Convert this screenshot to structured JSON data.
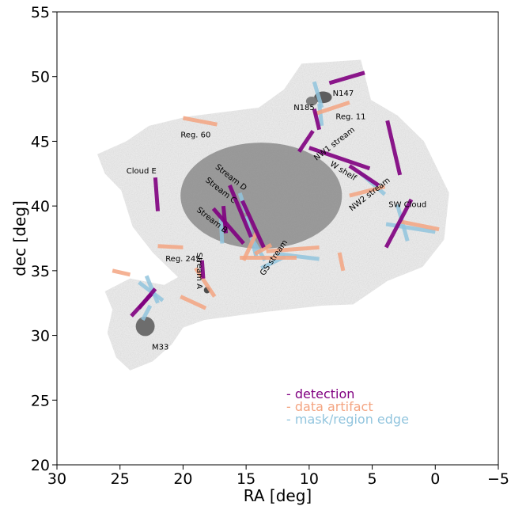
{
  "chart_data": {
    "type": "scatter",
    "xlabel": "RA [deg]",
    "ylabel": "dec [deg]",
    "xlim": [
      30,
      -5
    ],
    "ylim": [
      20,
      55
    ],
    "xticks": [
      "30",
      "25",
      "20",
      "15",
      "10",
      "5",
      "0",
      "−5"
    ],
    "yticks": [
      "20",
      "25",
      "30",
      "35",
      "40",
      "45",
      "50",
      "55"
    ],
    "xtick_values": [
      30,
      25,
      20,
      15,
      10,
      5,
      0,
      -5
    ],
    "ytick_values": [
      20,
      25,
      30,
      35,
      40,
      45,
      50,
      55
    ],
    "grid": false,
    "legend": {
      "placement": "lower-center",
      "entries": [
        {
          "label": "- detection",
          "color": "#800080"
        },
        {
          "label": "- data artifact",
          "color": "#f4a582"
        },
        {
          "label": "- mask/region edge",
          "color": "#92c5de"
        }
      ]
    },
    "annotations": [
      {
        "text": "N147",
        "x": 7.3,
        "y": 48.7,
        "rot": 0
      },
      {
        "text": "N185",
        "x": 10.4,
        "y": 47.6,
        "rot": 0
      },
      {
        "text": "Reg. 11",
        "x": 6.7,
        "y": 46.9,
        "rot": 0
      },
      {
        "text": "Reg. 60",
        "x": 19.0,
        "y": 45.5,
        "rot": 0
      },
      {
        "text": "NW1 stream",
        "x": 8.0,
        "y": 44.8,
        "rot": -38
      },
      {
        "text": "W shelf",
        "x": 7.3,
        "y": 42.7,
        "rot": 32
      },
      {
        "text": "NW2 stream",
        "x": 5.2,
        "y": 40.9,
        "rot": -38
      },
      {
        "text": "SW Cloud",
        "x": 2.2,
        "y": 40.1,
        "rot": 0
      },
      {
        "text": "Cloud E",
        "x": 23.3,
        "y": 42.7,
        "rot": 0
      },
      {
        "text": "Stream D",
        "x": 16.2,
        "y": 42.2,
        "rot": 38
      },
      {
        "text": "Stream C",
        "x": 17.0,
        "y": 41.2,
        "rot": 38
      },
      {
        "text": "Stream B",
        "x": 17.7,
        "y": 38.9,
        "rot": 38
      },
      {
        "text": "Reg. 245",
        "x": 20.0,
        "y": 35.9,
        "rot": 0
      },
      {
        "text": "Stream A",
        "x": 18.7,
        "y": 35.0,
        "rot": 90
      },
      {
        "text": "GS stream",
        "x": 12.8,
        "y": 36.0,
        "rot": -55
      },
      {
        "text": "M33",
        "x": 21.8,
        "y": 29.1,
        "rot": 0
      }
    ],
    "detections": [
      [
        [
          22.2,
          42.2
        ],
        [
          22.0,
          39.6
        ]
      ],
      [
        [
          16.3,
          41.6
        ],
        [
          14.6,
          37.6
        ]
      ],
      [
        [
          15.3,
          40.4
        ],
        [
          13.6,
          36.8
        ]
      ],
      [
        [
          17.6,
          39.8
        ],
        [
          15.2,
          37.1
        ]
      ],
      [
        [
          16.8,
          40.0
        ],
        [
          16.6,
          37.9
        ]
      ],
      [
        [
          18.5,
          35.8
        ],
        [
          18.4,
          34.4
        ]
      ],
      [
        [
          10.8,
          44.2
        ],
        [
          9.7,
          45.8
        ]
      ],
      [
        [
          10.0,
          44.5
        ],
        [
          5.2,
          42.9
        ]
      ],
      [
        [
          3.8,
          46.6
        ],
        [
          2.8,
          42.4
        ]
      ],
      [
        [
          6.8,
          43.1
        ],
        [
          4.5,
          41.6
        ]
      ],
      [
        [
          1.9,
          40.5
        ],
        [
          3.9,
          36.8
        ]
      ],
      [
        [
          9.6,
          47.5
        ],
        [
          9.2,
          45.9
        ]
      ],
      [
        [
          8.4,
          49.5
        ],
        [
          5.6,
          50.3
        ]
      ],
      [
        [
          22.5,
          33.2
        ],
        [
          24.1,
          31.5
        ]
      ],
      [
        [
          22.2,
          33.6
        ],
        [
          23.5,
          32.1
        ]
      ]
    ],
    "artifacts": [
      [
        [
          15.5,
          36.0
        ],
        [
          11.0,
          36.0
        ]
      ],
      [
        [
          13.4,
          36.5
        ],
        [
          9.2,
          36.8
        ]
      ],
      [
        [
          14.3,
          36.3
        ],
        [
          13.0,
          37.0
        ]
      ],
      [
        [
          15.2,
          35.8
        ],
        [
          14.2,
          37.9
        ]
      ],
      [
        [
          7.6,
          36.4
        ],
        [
          7.3,
          35.0
        ]
      ],
      [
        [
          20.0,
          36.8
        ],
        [
          22.0,
          36.9
        ]
      ],
      [
        [
          17.3,
          46.3
        ],
        [
          20.0,
          46.8
        ]
      ],
      [
        [
          9.6,
          47.1
        ],
        [
          6.8,
          48.0
        ]
      ],
      [
        [
          4.0,
          41.5
        ],
        [
          6.8,
          40.8
        ]
      ],
      [
        [
          2.8,
          38.8
        ],
        [
          -0.3,
          38.2
        ]
      ],
      [
        [
          20.2,
          33.0
        ],
        [
          18.2,
          32.1
        ]
      ],
      [
        [
          24.2,
          34.7
        ],
        [
          25.6,
          35.0
        ]
      ],
      [
        [
          19.0,
          35.2
        ],
        [
          17.5,
          33.0
        ]
      ]
    ],
    "edges": [
      [
        [
          15.5,
          41.0
        ],
        [
          15.0,
          39.5
        ]
      ],
      [
        [
          15.0,
          39.2
        ],
        [
          14.2,
          36.1
        ]
      ],
      [
        [
          17.0,
          39.1
        ],
        [
          16.9,
          37.1
        ]
      ],
      [
        [
          14.5,
          37.4
        ],
        [
          13.5,
          35.8
        ]
      ],
      [
        [
          13.8,
          35.2
        ],
        [
          11.9,
          36.1
        ]
      ],
      [
        [
          12.5,
          36.3
        ],
        [
          9.2,
          35.9
        ]
      ],
      [
        [
          9.6,
          49.6
        ],
        [
          9.0,
          47.6
        ]
      ],
      [
        [
          9.2,
          47.9
        ],
        [
          9.0,
          46.2
        ]
      ],
      [
        [
          6.0,
          42.6
        ],
        [
          4.0,
          40.9
        ]
      ],
      [
        [
          3.9,
          38.6
        ],
        [
          0.0,
          38.0
        ]
      ],
      [
        [
          3.0,
          40.1
        ],
        [
          2.2,
          37.3
        ]
      ],
      [
        [
          23.5,
          34.1
        ],
        [
          21.6,
          32.7
        ]
      ],
      [
        [
          22.9,
          34.6
        ],
        [
          22.0,
          32.5
        ]
      ],
      [
        [
          23.2,
          31.2
        ],
        [
          22.6,
          32.3
        ]
      ]
    ],
    "blobs": [
      {
        "x": 13.8,
        "y": 40.8,
        "rx": 6.4,
        "ry": 4.1,
        "color": "#7f7f7f"
      },
      {
        "x": 8.9,
        "y": 48.4,
        "rx": 0.7,
        "ry": 0.45,
        "color": "#555555"
      },
      {
        "x": 9.8,
        "y": 48.1,
        "rx": 0.45,
        "ry": 0.35,
        "color": "#777777"
      },
      {
        "x": 23.0,
        "y": 30.7,
        "rx": 0.75,
        "ry": 0.75,
        "color": "#666666"
      },
      {
        "x": 18.1,
        "y": 33.5,
        "rx": 0.25,
        "ry": 0.25,
        "color": "#444444"
      }
    ]
  }
}
